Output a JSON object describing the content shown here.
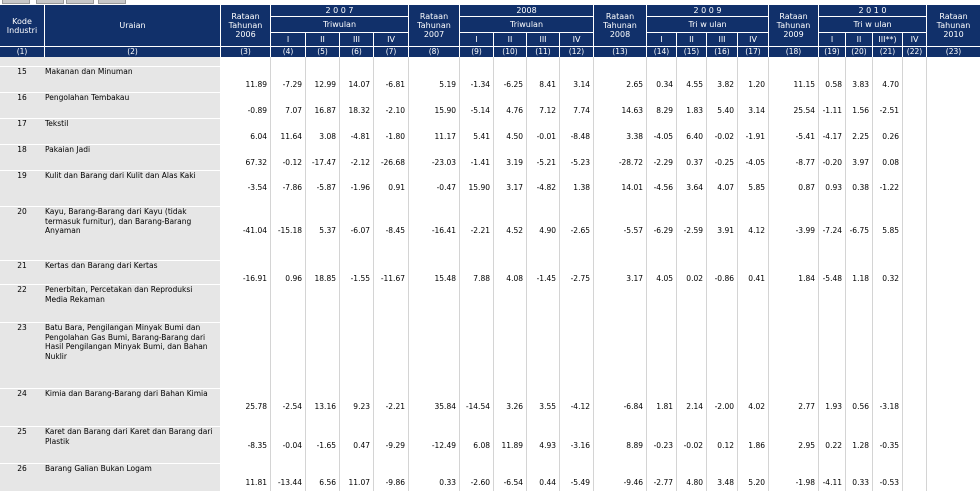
{
  "header": {
    "kode": "Kode\nIndustri",
    "uraian": "Uraian",
    "rataan_2006": "Rataan\nTahunan\n2006",
    "year_2007": "2 0 0 7",
    "rataan_2007": "Rataan\nTahunan\n2007",
    "year_2008": "2008",
    "rataan_2008": "Rataan\nTahunan\n2008",
    "year_2009": "2 0 0 9",
    "rataan_2009": "Rataan\nTahunan\n2009",
    "year_2010": "2 0 1 0",
    "rataan_2010": "Rataan\nTahunan\n2010",
    "triwulan": "Triwulan",
    "triwulan_spaced": "Tri w ulan",
    "q": [
      "I",
      "II",
      "III",
      "IV"
    ],
    "q2010": [
      "I",
      "II",
      "III**)",
      "IV"
    ]
  },
  "colnums": [
    "(1)",
    "(2)",
    "(3)",
    "(4)",
    "(5)",
    "(6)",
    "(7)",
    "(8)",
    "(9)",
    "(10)",
    "(11)",
    "(12)",
    "(13)",
    "(14)",
    "(15)",
    "(16)",
    "(17)",
    "(18)",
    "(19)",
    "(20)",
    "(21)",
    "(22)",
    "(23)"
  ],
  "rows": [
    {
      "code": "15",
      "name": "Makanan dan Minuman",
      "v": [
        "11.89",
        "-7.29",
        "12.99",
        "14.07",
        "-6.81",
        "5.19",
        "-1.34",
        "-6.25",
        "8.41",
        "3.14",
        "2.65",
        "0.34",
        "4.55",
        "3.82",
        "1.20",
        "11.15",
        "0.58",
        "3.83",
        "4.70",
        "",
        ""
      ]
    },
    {
      "code": "16",
      "name": "Pengolahan Tembakau",
      "v": [
        "-0.89",
        "7.07",
        "16.87",
        "18.32",
        "-2.10",
        "15.90",
        "-5.14",
        "4.76",
        "7.12",
        "7.74",
        "14.63",
        "8.29",
        "1.83",
        "5.40",
        "3.14",
        "25.54",
        "-1.11",
        "1.56",
        "-2.51",
        "",
        ""
      ]
    },
    {
      "code": "17",
      "name": "Tekstil",
      "v": [
        "6.04",
        "11.64",
        "3.08",
        "-4.81",
        "-1.80",
        "11.17",
        "5.41",
        "4.50",
        "-0.01",
        "-8.48",
        "3.38",
        "-4.05",
        "6.40",
        "-0.02",
        "-1.91",
        "-5.41",
        "-4.17",
        "2.25",
        "0.26",
        "",
        ""
      ]
    },
    {
      "code": "18",
      "name": "Pakaian Jadi",
      "v": [
        "67.32",
        "-0.12",
        "-17.47",
        "-2.12",
        "-26.68",
        "-23.03",
        "-1.41",
        "3.19",
        "-5.21",
        "-5.23",
        "-28.72",
        "-2.29",
        "0.37",
        "-0.25",
        "-4.05",
        "-8.77",
        "-0.20",
        "3.97",
        "0.08",
        "",
        ""
      ]
    },
    {
      "code": "19",
      "name": "Kulit dan Barang dari Kulit dan Alas Kaki",
      "v": [
        "-3.54",
        "-7.86",
        "-5.87",
        "-1.96",
        "0.91",
        "-0.47",
        "15.90",
        "3.17",
        "-4.82",
        "1.38",
        "14.01",
        "-4.56",
        "3.64",
        "4.07",
        "5.85",
        "0.87",
        "0.93",
        "0.38",
        "-1.22",
        "",
        ""
      ]
    },
    {
      "code": "20",
      "name": "Kayu, Barang-Barang dari Kayu (tidak termasuk furnitur), dan Barang-Barang Anyaman",
      "v": [
        "-41.04",
        "-15.18",
        "5.37",
        "-6.07",
        "-8.45",
        "-16.41",
        "-2.21",
        "4.52",
        "4.90",
        "-2.65",
        "-5.57",
        "-6.29",
        "-2.59",
        "3.91",
        "4.12",
        "-3.99",
        "-7.24",
        "-6.75",
        "5.85",
        "",
        ""
      ]
    },
    {
      "code": "21",
      "name": "Kertas dan Barang dari Kertas",
      "v": [
        "-16.91",
        "0.96",
        "18.85",
        "-1.55",
        "-11.67",
        "15.48",
        "7.88",
        "4.08",
        "-1.45",
        "-2.75",
        "3.17",
        "4.05",
        "0.02",
        "-0.86",
        "0.41",
        "1.84",
        "-5.48",
        "1.18",
        "0.32",
        "",
        ""
      ]
    },
    {
      "code": "22",
      "name": "Penerbitan, Percetakan dan Reproduksi Media Rekaman",
      "v": [
        "",
        "",
        "",
        "",
        "",
        "",
        "",
        "",
        "",
        "",
        "",
        "",
        "",
        "",
        "",
        "",
        "",
        "",
        "",
        "",
        ""
      ]
    },
    {
      "code": "23",
      "name": "Batu Bara, Pengilangan Minyak Bumi dan Pengolahan Gas Bumi, Barang-Barang dari Hasil Pengilangan Minyak Bumi, dan Bahan Nuklir",
      "v": [
        "",
        "",
        "",
        "",
        "",
        "",
        "",
        "",
        "",
        "",
        "",
        "",
        "",
        "",
        "",
        "",
        "",
        "",
        "",
        "",
        ""
      ]
    },
    {
      "code": "24",
      "name": "Kimia dan Barang-Barang dari Bahan Kimia",
      "v": [
        "25.78",
        "-2.54",
        "13.16",
        "9.23",
        "-2.21",
        "35.84",
        "-14.54",
        "3.26",
        "3.55",
        "-4.12",
        "-6.84",
        "1.81",
        "2.14",
        "-2.00",
        "4.02",
        "2.77",
        "1.93",
        "0.56",
        "-3.18",
        "",
        ""
      ]
    },
    {
      "code": "25",
      "name": "Karet dan Barang dari Karet dan Barang dari Plastik",
      "v": [
        "-8.35",
        "-0.04",
        "-1.65",
        "0.47",
        "-9.29",
        "-12.49",
        "6.08",
        "11.89",
        "4.93",
        "-3.16",
        "8.89",
        "-0.23",
        "-0.02",
        "0.12",
        "1.86",
        "2.95",
        "0.22",
        "1.28",
        "-0.35",
        "",
        ""
      ]
    },
    {
      "code": "26",
      "name": "Barang Galian Bukan Logam",
      "v": [
        "11.81",
        "-13.44",
        "6.56",
        "11.07",
        "-9.86",
        "0.33",
        "-2.60",
        "-6.54",
        "0.44",
        "-5.49",
        "-9.46",
        "-2.77",
        "4.80",
        "3.48",
        "5.20",
        "-1.98",
        "-4.11",
        "0.33",
        "-0.53",
        "",
        ""
      ]
    }
  ]
}
